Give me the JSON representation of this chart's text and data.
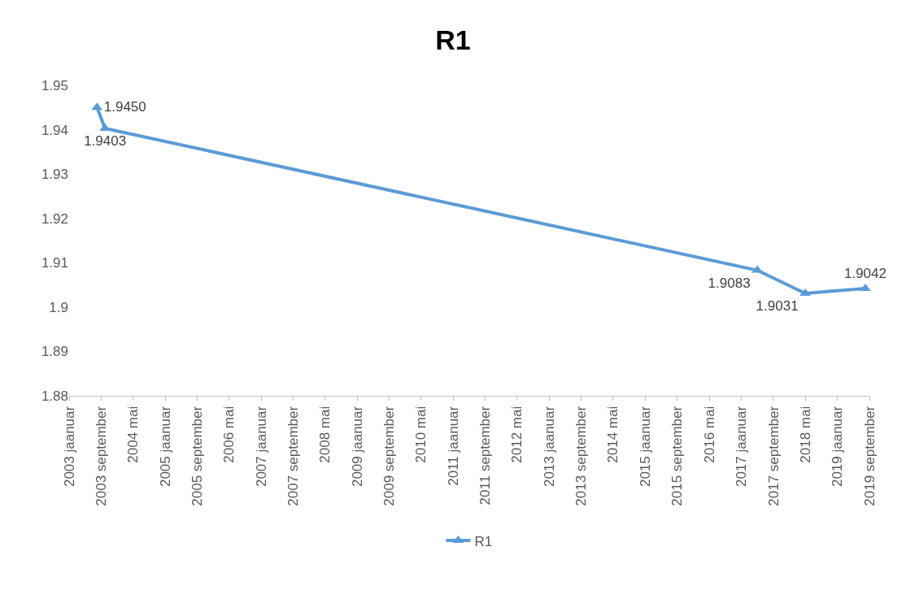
{
  "chart_data": {
    "type": "line",
    "title": "R1",
    "x": [
      "2003-08",
      "2003-10",
      "2017-05",
      "2018-05",
      "2019-08"
    ],
    "series": [
      {
        "name": "R1",
        "color": "#5b9bd5",
        "values": [
          1.945,
          1.9403,
          1.9083,
          1.9031,
          1.9042
        ],
        "value_labels": [
          "1.9450",
          "1.9403",
          "1.9083",
          "1.9031",
          "1.9042"
        ]
      }
    ],
    "xlim": [
      "2003-01",
      "2019-09"
    ],
    "xticks": [
      {
        "value": "2003-01",
        "label": "2003 jaanuar"
      },
      {
        "value": "2003-09",
        "label": "2003 september"
      },
      {
        "value": "2004-05",
        "label": "2004 mai"
      },
      {
        "value": "2005-01",
        "label": "2005 jaanuar"
      },
      {
        "value": "2005-09",
        "label": "2005 september"
      },
      {
        "value": "2006-05",
        "label": "2006 mai"
      },
      {
        "value": "2007-01",
        "label": "2007 jaanuar"
      },
      {
        "value": "2007-09",
        "label": "2007 september"
      },
      {
        "value": "2008-05",
        "label": "2008 mai"
      },
      {
        "value": "2009-01",
        "label": "2009 jaanuar"
      },
      {
        "value": "2009-09",
        "label": "2009 september"
      },
      {
        "value": "2010-05",
        "label": "2010 mai"
      },
      {
        "value": "2011-01",
        "label": "2011 jaanuar"
      },
      {
        "value": "2011-09",
        "label": "2011 september"
      },
      {
        "value": "2012-05",
        "label": "2012 mai"
      },
      {
        "value": "2013-01",
        "label": "2013 jaanuar"
      },
      {
        "value": "2013-09",
        "label": "2013 september"
      },
      {
        "value": "2014-05",
        "label": "2014 mai"
      },
      {
        "value": "2015-01",
        "label": "2015 jaanuar"
      },
      {
        "value": "2015-09",
        "label": "2015 september"
      },
      {
        "value": "2016-05",
        "label": "2016 mai"
      },
      {
        "value": "2017-01",
        "label": "2017 jaanuar"
      },
      {
        "value": "2017-09",
        "label": "2017 september"
      },
      {
        "value": "2018-05",
        "label": "2018 mai"
      },
      {
        "value": "2019-01",
        "label": "2019 jaanuar"
      },
      {
        "value": "2019-09",
        "label": "2019 september"
      }
    ],
    "ylim": [
      1.88,
      1.95
    ],
    "yticks": [
      1.88,
      1.89,
      1.9,
      1.91,
      1.92,
      1.93,
      1.94,
      1.95
    ],
    "legend": "bottom",
    "marker": "triangle",
    "line_style": "solid"
  }
}
